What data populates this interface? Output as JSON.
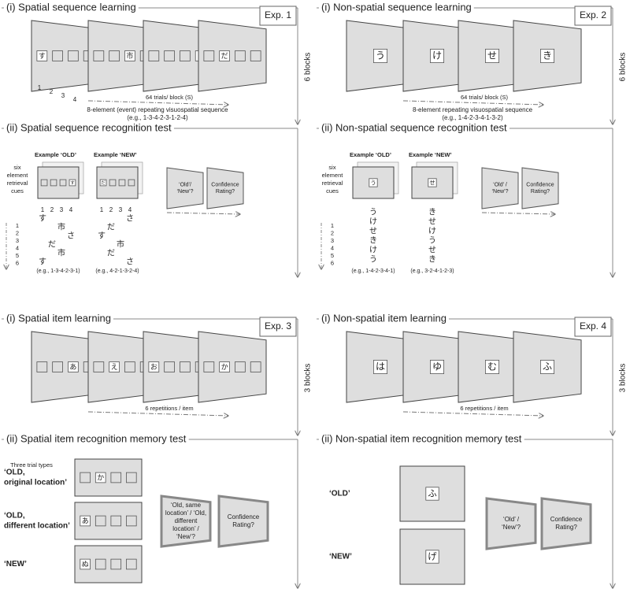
{
  "experiments": [
    {
      "label": "Exp. 1",
      "learning": {
        "title": "(i) Spatial sequence learning",
        "repetition": "6 blocks",
        "frames": [
          [
            "す",
            null,
            null,
            null
          ],
          [
            null,
            null,
            "市",
            null
          ],
          [
            null,
            null,
            null,
            "さ"
          ],
          [
            null,
            "だ",
            null,
            null
          ]
        ],
        "positions": [
          "1",
          "2",
          "3",
          "4"
        ],
        "schedule": "64 trials/ block (S)",
        "description": [
          "8-element (event) repeating visuospatial sequence",
          "(e.g., 1-3-4-2-3-1-2-4)"
        ]
      },
      "test": {
        "title": "(ii) Spatial sequence recognition test",
        "cue_label": [
          "six",
          "element",
          "retrieval",
          "cues"
        ],
        "cue_numbers": [
          "1",
          "2",
          "3",
          "4",
          "5",
          "6"
        ],
        "examples": [
          {
            "label": "Example ‘OLD’",
            "frame": [
              null,
              null,
              null,
              "す"
            ],
            "columns": [
              "1",
              "2",
              "3",
              "4"
            ],
            "sequence": [
              [
                "す",
                null,
                null,
                null
              ],
              [
                null,
                null,
                "市",
                null
              ],
              [
                null,
                null,
                null,
                "さ"
              ],
              [
                null,
                "だ",
                null,
                null
              ],
              [
                null,
                null,
                "市",
                null
              ],
              [
                "す",
                null,
                null,
                null
              ]
            ],
            "example": "(e.g., 1-3-4-2-3-1)"
          },
          {
            "label": "Example ‘NEW’",
            "frame": [
              "だ",
              null,
              null,
              null
            ],
            "columns": [
              "1",
              "2",
              "3",
              "4"
            ],
            "sequence": [
              [
                null,
                null,
                null,
                "さ"
              ],
              [
                null,
                "だ",
                null,
                null
              ],
              [
                "す",
                null,
                null,
                null
              ],
              [
                null,
                null,
                "市",
                null
              ],
              [
                null,
                "だ",
                null,
                null
              ],
              [
                null,
                null,
                null,
                "さ"
              ]
            ],
            "example": "(e.g., 4-2-1-3-2-4)"
          }
        ],
        "questions": [
          [
            "‘Old’/",
            "‘New’?"
          ],
          [
            "Confidence",
            "Rating?"
          ]
        ]
      }
    },
    {
      "label": "Exp. 2",
      "learning": {
        "title": "(i) Non-spatial sequence learning",
        "repetition": "6 blocks",
        "frames": [
          "う",
          "け",
          "せ",
          "き"
        ],
        "schedule": "64 trials/ block (S)",
        "description": [
          "8-element repeating visuospatial sequence",
          "(e.g., 1-4-2-3-4-1-3-2)"
        ]
      },
      "test": {
        "title": "(ii) Non-spatial sequence recognition test",
        "cue_label": [
          "six",
          "element",
          "retrieval",
          "cues"
        ],
        "cue_numbers": [
          "1",
          "2",
          "3",
          "4",
          "5",
          "6"
        ],
        "examples": [
          {
            "label": "Example ‘OLD’",
            "frame": "う",
            "sequence": [
              "う",
              "け",
              "せ",
              "き",
              "け",
              "う"
            ],
            "example": "(e.g., 1-4-2-3-4-1)"
          },
          {
            "label": "Example ‘NEW’",
            "frame": "せ",
            "sequence": [
              "き",
              "せ",
              "け",
              "う",
              "せ",
              "き"
            ],
            "example": "(e.g., 3-2-4-1-2-3)"
          }
        ],
        "questions": [
          [
            "‘Old’ /",
            "‘New’?"
          ],
          [
            "Confidence",
            "Rating?"
          ]
        ]
      }
    },
    {
      "label": "Exp. 3",
      "learning": {
        "title": "(i) Spatial item learning",
        "repetition": "3 blocks",
        "frames": [
          [
            null,
            null,
            "あ",
            null
          ],
          [
            null,
            "え",
            null,
            null
          ],
          [
            "お",
            null,
            null,
            null
          ],
          [
            null,
            "か",
            null,
            null
          ]
        ],
        "schedule": "6 repetitions / item"
      },
      "test": {
        "title": "(ii) Spatial item recognition memory test",
        "trial_types_label": "Three trial types",
        "trials": [
          {
            "label": [
              "‘OLD,",
              "original location’"
            ],
            "frame": [
              null,
              "か",
              null,
              null
            ]
          },
          {
            "label": [
              "‘OLD,",
              "different location’"
            ],
            "frame": [
              "あ",
              null,
              null,
              null
            ]
          },
          {
            "label": [
              "‘NEW’"
            ],
            "frame": [
              "ぬ",
              null,
              null,
              null
            ]
          }
        ],
        "questions": [
          [
            "‘Old, same",
            "location’ / ‘Old,",
            "different",
            "location’ /",
            "‘New’?"
          ],
          [
            "Confidence",
            "Rating?"
          ]
        ]
      }
    },
    {
      "label": "Exp. 4",
      "learning": {
        "title": "(i) Non-spatial item learning",
        "repetition": "3 blocks",
        "frames": [
          "は",
          "ゆ",
          "む",
          "ふ"
        ],
        "schedule": "6 repetitions / item"
      },
      "test": {
        "title": "(ii) Non-spatial item recognition memory test",
        "trials": [
          {
            "label": [
              "‘OLD’"
            ],
            "frame": "ふ"
          },
          {
            "label": [
              "‘NEW’"
            ],
            "frame": "げ"
          }
        ],
        "questions": [
          [
            "‘Old’ /",
            "‘New’?"
          ],
          [
            "Confidence",
            "Rating?"
          ]
        ]
      }
    }
  ]
}
